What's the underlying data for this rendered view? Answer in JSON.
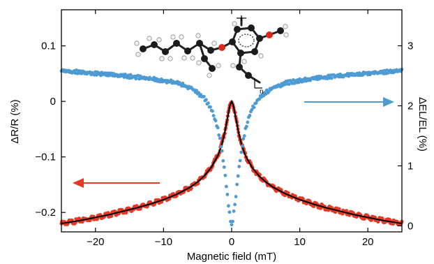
{
  "chart_data": {
    "type": "scatter",
    "title": "",
    "xlabel": "Magnetic field (mT)",
    "ylabel_left": "ΔR/R (%)",
    "ylabel_right": "ΔEL/EL (%)",
    "xlim": [
      -25,
      25
    ],
    "ylim_left": [
      -0.235,
      0.165
    ],
    "ylim_right": [
      -0.1,
      3.6
    ],
    "x_ticks": [
      -20,
      -10,
      0,
      10,
      20
    ],
    "x_tick_labels": [
      "−20",
      "−10",
      "0",
      "10",
      "20"
    ],
    "y_left_ticks": [
      0.1,
      0,
      -0.1,
      -0.2
    ],
    "y_left_tick_labels": [
      "0.1",
      "0",
      "−0.1",
      "−0.2"
    ],
    "y_right_ticks": [
      3,
      2,
      1,
      0
    ],
    "y_right_tick_labels": [
      "3",
      "2",
      "1",
      "0"
    ],
    "grid": false,
    "series": [
      {
        "axis": "left",
        "style": "dense markers",
        "color": "#e53a25",
        "x": [
          -25,
          -22,
          -20,
          -18,
          -16,
          -14,
          -12,
          -10,
          -8,
          -6,
          -5,
          -4,
          -3,
          -2,
          -1.5,
          -1,
          -0.5,
          -0.25,
          0,
          0.25,
          0.5,
          1,
          1.5,
          2,
          3,
          4,
          5,
          6,
          8,
          10,
          12,
          14,
          16,
          18,
          20,
          22,
          25
        ],
        "y": [
          -0.22,
          -0.214,
          -0.209,
          -0.204,
          -0.198,
          -0.192,
          -0.185,
          -0.177,
          -0.167,
          -0.154,
          -0.145,
          -0.134,
          -0.119,
          -0.097,
          -0.08,
          -0.055,
          -0.023,
          -0.007,
          0.0,
          -0.007,
          -0.023,
          -0.055,
          -0.08,
          -0.097,
          -0.119,
          -0.134,
          -0.145,
          -0.154,
          -0.167,
          -0.177,
          -0.185,
          -0.192,
          -0.198,
          -0.204,
          -0.209,
          -0.214,
          -0.22
        ]
      },
      {
        "axis": "left",
        "style": "fit line",
        "color": "#000000",
        "x": [
          -25,
          -22,
          -20,
          -18,
          -16,
          -14,
          -12,
          -10,
          -8,
          -6,
          -5,
          -4,
          -3,
          -2,
          -1.5,
          -1,
          -0.5,
          -0.25,
          0,
          0.25,
          0.5,
          1,
          1.5,
          2,
          3,
          4,
          5,
          6,
          8,
          10,
          12,
          14,
          16,
          18,
          20,
          22,
          25
        ],
        "y": [
          -0.22,
          -0.214,
          -0.209,
          -0.204,
          -0.198,
          -0.192,
          -0.185,
          -0.177,
          -0.167,
          -0.154,
          -0.145,
          -0.134,
          -0.119,
          -0.097,
          -0.08,
          -0.055,
          -0.023,
          -0.007,
          0.0,
          -0.007,
          -0.023,
          -0.055,
          -0.08,
          -0.097,
          -0.119,
          -0.134,
          -0.145,
          -0.154,
          -0.167,
          -0.177,
          -0.185,
          -0.192,
          -0.198,
          -0.204,
          -0.209,
          -0.214,
          -0.22
        ]
      },
      {
        "axis": "right",
        "style": "markers",
        "color": "#4e9ad2",
        "x": [
          -25,
          -22,
          -20,
          -18,
          -16,
          -14,
          -12,
          -10,
          -8,
          -6,
          -5,
          -4,
          -3,
          -2.5,
          -2,
          -1.5,
          -1.2,
          -1,
          -0.8,
          -0.6,
          -0.4,
          -0.2,
          0,
          0.2,
          0.4,
          0.6,
          0.8,
          1,
          1.2,
          1.5,
          2,
          2.5,
          3,
          4,
          5,
          6,
          8,
          10,
          12,
          14,
          16,
          18,
          20,
          22,
          25
        ],
        "y": [
          2.58,
          2.56,
          2.54,
          2.52,
          2.5,
          2.48,
          2.45,
          2.42,
          2.38,
          2.3,
          2.22,
          2.12,
          1.95,
          1.8,
          1.6,
          1.3,
          1.05,
          0.9,
          0.68,
          0.48,
          0.3,
          0.12,
          0.0,
          0.12,
          0.3,
          0.48,
          0.68,
          0.9,
          1.05,
          1.3,
          1.6,
          1.8,
          1.95,
          2.12,
          2.22,
          2.3,
          2.38,
          2.42,
          2.45,
          2.48,
          2.5,
          2.52,
          2.54,
          2.56,
          2.58
        ]
      }
    ],
    "annotations": [
      {
        "kind": "arrow",
        "direction": "left",
        "color": "#e53a25",
        "points_to": "left axis"
      },
      {
        "kind": "arrow",
        "direction": "right",
        "color": "#4e9ad2",
        "points_to": "right axis"
      },
      {
        "kind": "inset",
        "content": "molecular structure (ball-and-stick polymer repeat unit)",
        "subscript": "n"
      }
    ]
  }
}
